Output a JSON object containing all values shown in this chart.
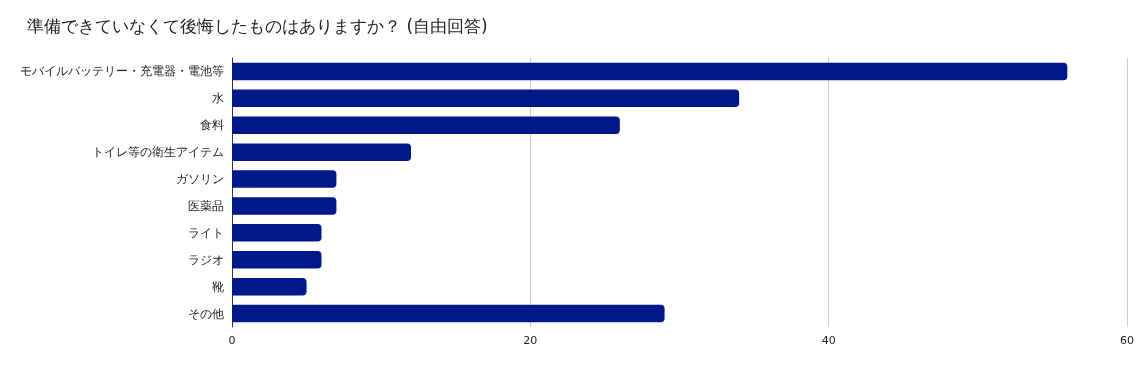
{
  "chart_data": {
    "type": "bar",
    "orientation": "horizontal",
    "title": "準備できていなくて後悔したものはありますか？ (自由回答)",
    "categories": [
      "モバイルバッテリー・充電器・電池等",
      "水",
      "食料",
      "トイレ等の衛生アイテム",
      "ガソリン",
      "医薬品",
      "ライト",
      "ラジオ",
      "靴",
      "その他"
    ],
    "values": [
      56,
      34,
      26,
      12,
      7,
      7,
      6,
      6,
      5,
      29
    ],
    "color": "#00188a",
    "xlim": [
      0,
      60
    ],
    "xticks": [
      0,
      20,
      40,
      60
    ],
    "grid": "x"
  }
}
